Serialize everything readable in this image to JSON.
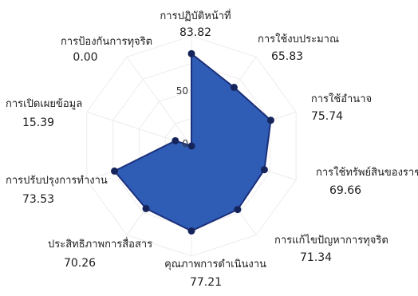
{
  "chart_data": {
    "type": "radar",
    "title": "",
    "range": [
      0,
      100
    ],
    "ticks": [
      0,
      50
    ],
    "grid": true,
    "categories": [
      "การปฏิบัติหน้าที่",
      "การใช้งบประมาณ",
      "การใช้อำนาจ",
      "การใช้ทรัพย์สินของราชก",
      "การแก้ไขปัญหาการทุจริต",
      "คุณภาพการดำเนินงาน",
      "ประสิทธิภาพการสื่อสาร",
      "การปรับปรุงการทำงาน",
      "การเปิดเผยข้อมูล",
      "การป้องกันการทุจริต"
    ],
    "value_labels": [
      "83.82",
      "65.83",
      "75.74",
      "69.66",
      "71.34",
      "77.21",
      "70.26",
      "73.53",
      "15.39",
      "0.00"
    ],
    "series": [
      {
        "values": [
          83.82,
          65.83,
          75.74,
          69.66,
          71.34,
          77.21,
          70.26,
          73.53,
          15.39,
          0.0
        ]
      }
    ],
    "colors": {
      "fill": "#2f5cb4",
      "stroke": "#1b2f7a",
      "point": "#16245c",
      "grid": "#ececec"
    }
  }
}
